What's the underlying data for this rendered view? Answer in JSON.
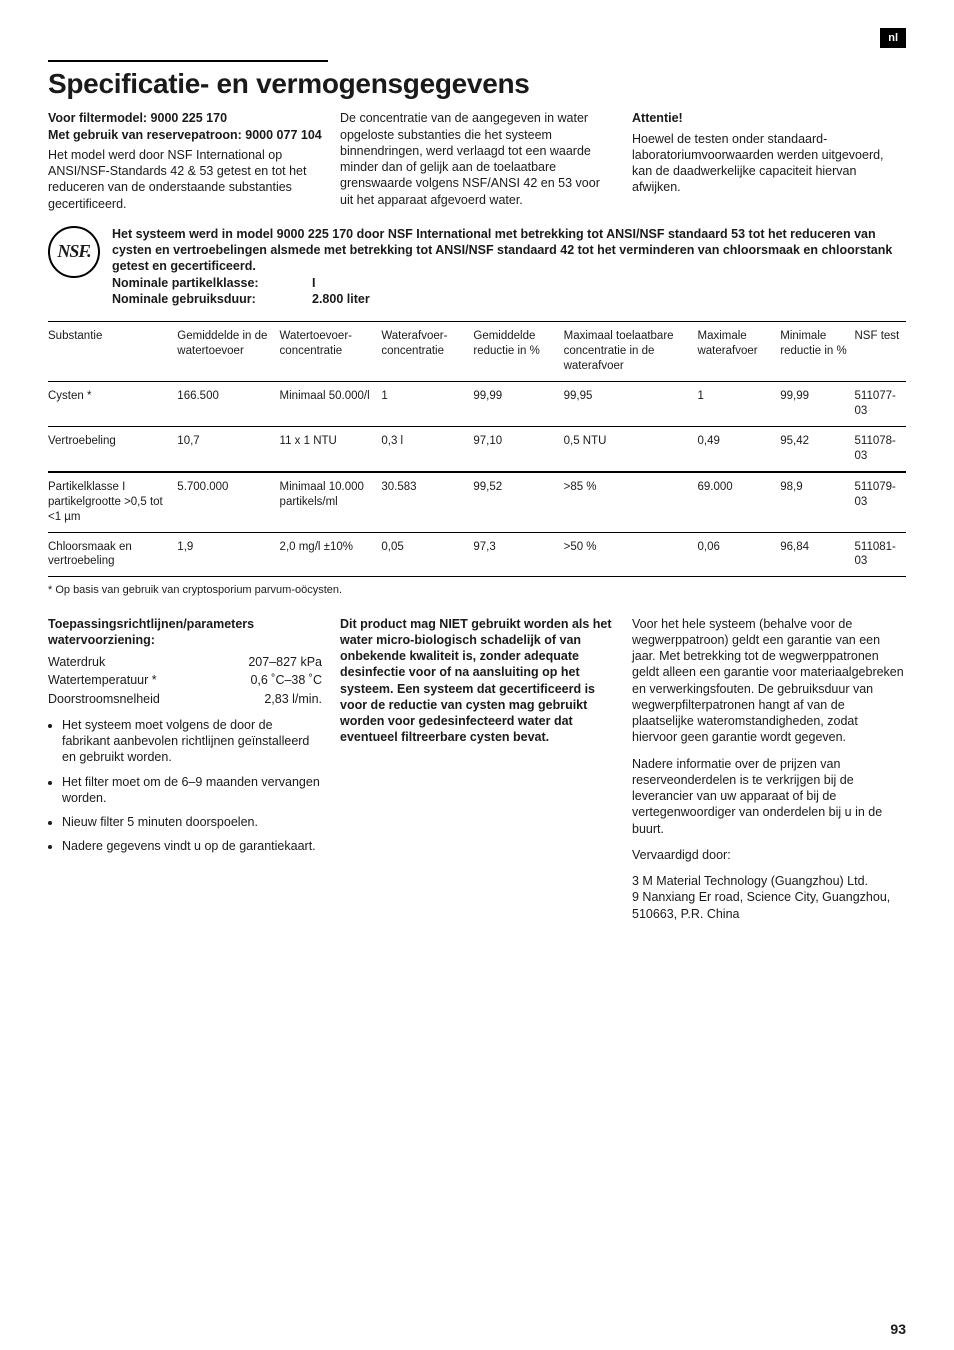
{
  "lang_tag": "nl",
  "heading": "Specificatie- en vermogensgegevens",
  "intro": {
    "col1_bold1": "Voor filtermodel: 9000 225 170",
    "col1_bold2": "Met gebruik van reservepatroon: 9000 077 104",
    "col1_text": "Het model werd door NSF International op ANSI/NSF-Standards 42 & 53 getest en tot het reduceren van de onderstaande substanties gecertificeerd.",
    "col2_text": "De concentratie van de aangegeven in water opgeloste substanties die het systeem binnendringen, werd verlaagd tot een waarde minder dan of gelijk aan de toelaatbare grenswaarde volgens NSF/ANSI 42 en 53 voor uit het apparaat afgevoerd water.",
    "col3_head": "Attentie!",
    "col3_text": "Hoewel de testen onder standaard-laboratoriumvoorwaarden werden uitgevoerd, kan de daadwerkelijke capaciteit hiervan afwijken."
  },
  "nsf_block": {
    "text": "Het systeem werd in model 9000 225 170 door NSF International met betrekking tot ANSI/NSF standaard 53 tot het reduceren van cysten en vertroebelingen alsmede met betrekking tot ANSI/NSF standaard 42 tot het verminderen van chloorsmaak en chloorstank getest en gecertificeerd.",
    "nom1_label": "Nominale partikelklasse:",
    "nom1_value": "I",
    "nom2_label": "Nominale gebruiksduur:",
    "nom2_value": "2.800 liter"
  },
  "table": {
    "headers": [
      "Substantie",
      "Gemiddelde in de watertoevoer",
      "Watertoevoer-concentratie",
      "Waterafvoer-concentratie",
      "Gemiddelde reductie in %",
      "Maximaal toelaatbare concentratie in de waterafvoer",
      "Maximale waterafvoer",
      "Minimale reductie in %",
      "NSF test"
    ],
    "rows": [
      [
        "Cysten *",
        "166.500",
        "Minimaal 50.000/l",
        "1",
        "99,99",
        "99,95",
        "1",
        "99,99",
        "511077-03"
      ],
      [
        "Vertroebeling",
        "10,7",
        "11 x 1 NTU",
        "0,3 l",
        "97,10",
        "0,5 NTU",
        "0,49",
        "95,42",
        "511078-03"
      ],
      [
        "Partikelklasse I partikelgrootte >0,5 tot <1 µm",
        "5.700.000",
        "Minimaal 10.000 partikels/ml",
        "30.583",
        "99,52",
        ">85 %",
        "69.000",
        "98,9",
        "511079-03"
      ],
      [
        "Chloorsmaak en vertroebeling",
        "1,9",
        "2,0 mg/l ±10%",
        "0,05",
        "97,3",
        ">50 %",
        "0,06",
        "96,84",
        "511081-03"
      ]
    ],
    "footnote": "* Op basis van gebruik van cryptosporium parvum-oöcysten."
  },
  "lower": {
    "params_head": "Toepassingsrichtlijnen/parameters watervoorziening:",
    "params": [
      [
        "Waterdruk",
        "207–827 kPa"
      ],
      [
        "Watertemperatuur *",
        "0,6 ˚C–38 ˚C"
      ],
      [
        "Doorstroomsnelheid",
        "2,83 l/min."
      ]
    ],
    "bullets": [
      "Het systeem moet volgens de door de fabrikant aanbevolen richtlijnen geïnstalleerd en gebruikt worden.",
      "Het filter moet om de 6–9 maanden vervangen worden.",
      "Nieuw filter 5 minuten doorspoelen.",
      "Nadere gegevens vindt u op de garantiekaart."
    ],
    "warning": "Dit product mag NIET gebruikt worden als het water micro-biologisch schadelijk of van onbekende kwaliteit is, zonder adequate desinfectie voor of na aansluiting op het systeem. Een systeem dat gecertificeerd is voor de reductie van cysten mag gebruikt worden voor gedesinfecteerd water dat eventueel filtreerbare cysten bevat.",
    "col3_p1": "Voor het hele systeem (behalve voor de wegwerppatroon) geldt een garantie van een jaar. Met betrekking tot de wegwerppatronen geldt alleen een garantie voor materiaalgebreken en verwerkingsfouten. De gebruiksduur van wegwerpfilterpatronen hangt af van de plaatselijke wateromstandigheden, zodat hiervoor geen garantie wordt gegeven.",
    "col3_p2": "Nadere informatie over de prijzen van reserveonderdelen is te verkrijgen bij de leverancier van uw apparaat of bij de vertegenwoordiger van onderdelen bij u in de buurt.",
    "col3_p3": "Vervaardigd door:",
    "col3_p4": "3 M Material Technology (Guangzhou) Ltd.\n9 Nanxiang Er road, Science City, Guangzhou, 510663, P.R. China"
  },
  "page_number": "93"
}
